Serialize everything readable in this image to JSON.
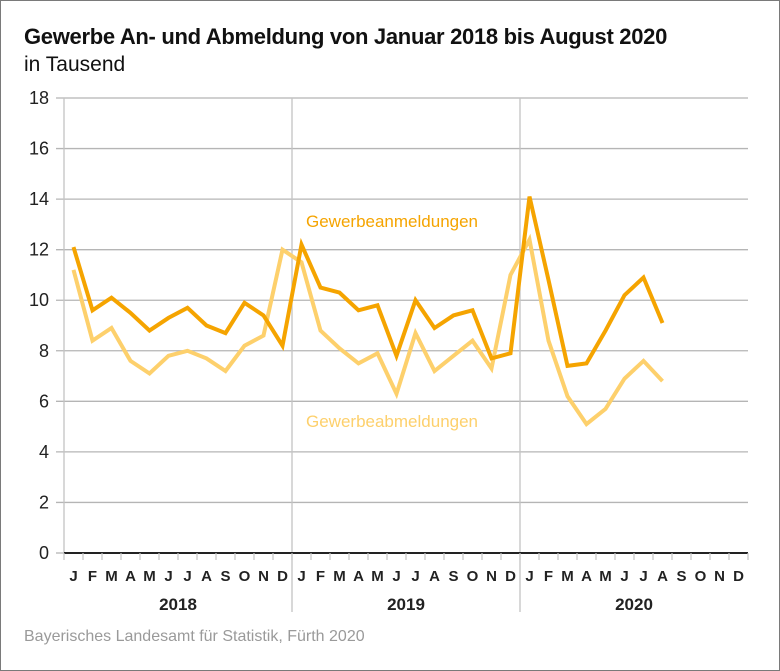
{
  "chart_data": {
    "type": "line",
    "title": "Gewerbe An- und Abmeldung von Januar 2018 bis August 2020",
    "subtitle": "in Tausend",
    "xlabel": "",
    "ylabel": "",
    "ylim": [
      0,
      18
    ],
    "yticks": [
      0,
      2,
      4,
      6,
      8,
      10,
      12,
      14,
      16,
      18
    ],
    "grid": true,
    "month_labels": [
      "J",
      "F",
      "M",
      "A",
      "M",
      "J",
      "J",
      "A",
      "S",
      "O",
      "N",
      "D",
      "J",
      "F",
      "M",
      "A",
      "M",
      "J",
      "J",
      "A",
      "S",
      "O",
      "N",
      "D",
      "J",
      "F",
      "M",
      "A",
      "M",
      "J",
      "J",
      "A",
      "S",
      "O",
      "N",
      "D"
    ],
    "years": [
      "2018",
      "2019",
      "2020"
    ],
    "series": [
      {
        "name": "Gewerbeanmeldungen",
        "color": "#f5a400",
        "values": [
          12.1,
          9.6,
          10.1,
          9.5,
          8.8,
          9.3,
          9.7,
          9.0,
          8.7,
          9.9,
          9.4,
          8.2,
          12.2,
          10.5,
          10.3,
          9.6,
          9.8,
          7.8,
          10.0,
          8.9,
          9.4,
          9.6,
          7.7,
          7.9,
          14.1,
          10.8,
          7.4,
          7.5,
          8.8,
          10.2,
          10.9,
          9.1
        ]
      },
      {
        "name": "Gewerbeabmeldungen",
        "color": "#fdd06c",
        "values": [
          11.2,
          8.4,
          8.9,
          7.6,
          7.1,
          7.8,
          8.0,
          7.7,
          7.2,
          8.2,
          8.6,
          12.0,
          11.5,
          8.8,
          8.1,
          7.5,
          7.9,
          6.3,
          8.7,
          7.2,
          7.8,
          8.4,
          7.3,
          11.0,
          12.4,
          8.4,
          6.2,
          5.1,
          5.7,
          6.9,
          7.6,
          6.8
        ]
      }
    ],
    "annotations": [
      {
        "text": "Gewerbeanmeldungen",
        "series": 0
      },
      {
        "text": "Gewerbeabmeldungen",
        "series": 1
      }
    ],
    "legend": "inline-labels"
  },
  "source": "Bayerisches Landesamt für Statistik, Fürth 2020"
}
